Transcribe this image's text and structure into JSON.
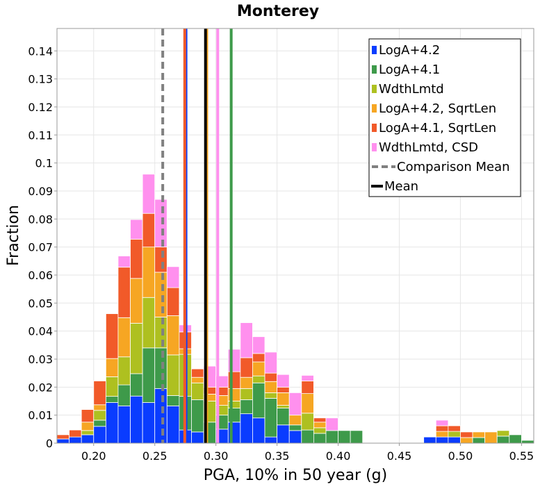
{
  "chart_data": {
    "type": "bar",
    "stacked": true,
    "title": "Monterey",
    "xlabel": "PGA, 10% in 50 year (g)",
    "ylabel": "Fraction",
    "xlim": [
      0.17,
      0.56
    ],
    "ylim": [
      0,
      0.148
    ],
    "grid": true,
    "legend_position": "top-right",
    "bin_width": 0.01,
    "x_ticks": [
      {
        "value": 0.2,
        "label": "0.20"
      },
      {
        "value": 0.25,
        "label": "0.25"
      },
      {
        "value": 0.3,
        "label": "0.30"
      },
      {
        "value": 0.35,
        "label": "0.35"
      },
      {
        "value": 0.4,
        "label": "0.40"
      },
      {
        "value": 0.45,
        "label": "0.45"
      },
      {
        "value": 0.5,
        "label": "0.50"
      },
      {
        "value": 0.55,
        "label": "0.55"
      }
    ],
    "y_ticks": [
      {
        "value": 0,
        "label": "0"
      },
      {
        "value": 0.01,
        "label": "0.01"
      },
      {
        "value": 0.02,
        "label": "0.02"
      },
      {
        "value": 0.03,
        "label": "0.03"
      },
      {
        "value": 0.04,
        "label": "0.04"
      },
      {
        "value": 0.05,
        "label": "0.05"
      },
      {
        "value": 0.06,
        "label": "0.06"
      },
      {
        "value": 0.07,
        "label": "0.07"
      },
      {
        "value": 0.08,
        "label": "0.08"
      },
      {
        "value": 0.09,
        "label": "0.09"
      },
      {
        "value": 0.1,
        "label": "0.1"
      },
      {
        "value": 0.11,
        "label": "0.11"
      },
      {
        "value": 0.12,
        "label": "0.12"
      },
      {
        "value": 0.13,
        "label": "0.13"
      },
      {
        "value": 0.14,
        "label": "0.14"
      }
    ],
    "x": [
      0.175,
      0.185,
      0.195,
      0.205,
      0.215,
      0.225,
      0.235,
      0.245,
      0.255,
      0.265,
      0.275,
      0.285,
      0.295,
      0.305,
      0.315,
      0.325,
      0.335,
      0.345,
      0.355,
      0.365,
      0.375,
      0.385,
      0.395,
      0.405,
      0.415,
      0.425,
      0.475,
      0.485,
      0.495,
      0.505,
      0.515,
      0.525,
      0.535,
      0.545,
      0.555
    ],
    "series": [
      {
        "name": "LogA+4.2",
        "color": "#0a3cff",
        "values": [
          0.0015,
          0.0022,
          0.003,
          0.006,
          0.0145,
          0.0133,
          0.0168,
          0.0145,
          0.0195,
          0.0133,
          0.0047,
          0.004,
          0.0,
          0.005,
          0.0075,
          0.0105,
          0.009,
          0.0022,
          0.0065,
          0.0045,
          0.0,
          0.0,
          0.0,
          0.0,
          0.0,
          0.0,
          0.0022,
          0.0022,
          0.0022,
          0.0,
          0.0,
          0.0,
          0.0,
          0.0,
          0.0
        ]
      },
      {
        "name": "LogA+4.1",
        "color": "#3e9a4a",
        "values": [
          0.0,
          0.0,
          0.0,
          0.0022,
          0.0022,
          0.0075,
          0.008,
          0.0195,
          0.0145,
          0.0037,
          0.012,
          0.0115,
          0.0075,
          0.005,
          0.005,
          0.005,
          0.0125,
          0.0138,
          0.006,
          0.002,
          0.0047,
          0.0035,
          0.0045,
          0.0045,
          0.0045,
          0.0,
          0.0,
          0.0,
          0.0,
          0.0,
          0.002,
          0.0,
          0.0025,
          0.003,
          0.001
        ]
      },
      {
        "name": "WdthLmtd",
        "color": "#aec020",
        "values": [
          0.0,
          0.0,
          0.0015,
          0.0035,
          0.007,
          0.01,
          0.018,
          0.018,
          0.011,
          0.0145,
          0.015,
          0.006,
          0.0075,
          0.0035,
          0.0025,
          0.004,
          0.0025,
          0.002,
          0.001,
          0.0,
          0.006,
          0.002,
          0.0,
          0.0,
          0.0,
          0.0,
          0.0,
          0.0,
          0.002,
          0.0,
          0.0,
          0.0,
          0.002,
          0.0,
          0.0
        ]
      },
      {
        "name": "LogA+4.2, SqrtLen",
        "color": "#f6a623",
        "values": [
          0.0,
          0.0,
          0.003,
          0.002,
          0.0065,
          0.014,
          0.016,
          0.018,
          0.016,
          0.014,
          0.002,
          0.002,
          0.0025,
          0.0035,
          0.0045,
          0.004,
          0.005,
          0.004,
          0.0045,
          0.0035,
          0.007,
          0.002,
          0.0,
          0.0,
          0.0,
          0.0,
          0.0,
          0.002,
          0.0,
          0.002,
          0.002,
          0.004,
          0.0,
          0.0,
          0.0
        ]
      },
      {
        "name": "LogA+4.1, SqrtLen",
        "color": "#f15a29",
        "values": [
          0.0015,
          0.0025,
          0.0045,
          0.0085,
          0.016,
          0.018,
          0.014,
          0.012,
          0.009,
          0.01,
          0.006,
          0.003,
          0.0025,
          0.003,
          0.006,
          0.007,
          0.003,
          0.003,
          0.002,
          0.0,
          0.0045,
          0.0015,
          0.0,
          0.0,
          0.0,
          0.0,
          0.0,
          0.002,
          0.002,
          0.002,
          0.0,
          0.0,
          0.0,
          0.0,
          0.0
        ]
      },
      {
        "name": "WdthLmtd, CSD",
        "color": "#ff90ee",
        "values": [
          0.0,
          0.0,
          0.0,
          0.0,
          0.0,
          0.004,
          0.007,
          0.014,
          0.017,
          0.0075,
          0.0025,
          0.0,
          0.0075,
          0.004,
          0.008,
          0.0125,
          0.006,
          0.0075,
          0.0045,
          0.008,
          0.002,
          0.0,
          0.0045,
          0.0,
          0.0,
          0.0,
          0.0,
          0.002,
          0.0,
          0.0,
          0.0,
          0.0,
          0.0,
          0.0,
          0.0
        ]
      }
    ],
    "vertical_lines": [
      {
        "series": "LogA+4.2",
        "x": 0.2755,
        "color": "#0a3cff",
        "style": "solid"
      },
      {
        "series": "LogA+4.1",
        "x": 0.3125,
        "color": "#3e9a4a",
        "style": "solid"
      },
      {
        "series": "LogA+4.2, SqrtLen",
        "x": 0.2925,
        "color": "#f6a623",
        "style": "solid"
      },
      {
        "series": "LogA+4.1, SqrtLen",
        "x": 0.2745,
        "color": "#f15a29",
        "style": "solid"
      },
      {
        "series": "WdthLmtd, CSD",
        "x": 0.3015,
        "color": "#ff90ee",
        "style": "solid"
      },
      {
        "series": "Comparison Mean",
        "x": 0.2565,
        "color": "#808080",
        "style": "dashed"
      },
      {
        "series": "Mean",
        "x": 0.2915,
        "color": "#000000",
        "style": "solid"
      }
    ],
    "legend": [
      {
        "label": "LogA+4.2",
        "color": "#0a3cff",
        "kind": "box"
      },
      {
        "label": "LogA+4.1",
        "color": "#3e9a4a",
        "kind": "box"
      },
      {
        "label": "WdthLmtd",
        "color": "#aec020",
        "kind": "box"
      },
      {
        "label": "LogA+4.2, SqrtLen",
        "color": "#f6a623",
        "kind": "box"
      },
      {
        "label": "LogA+4.1, SqrtLen",
        "color": "#f15a29",
        "kind": "box"
      },
      {
        "label": "WdthLmtd, CSD",
        "color": "#ff90ee",
        "kind": "box"
      },
      {
        "label": "Comparison Mean",
        "color": "#808080",
        "kind": "dashed"
      },
      {
        "label": "Mean",
        "color": "#000000",
        "kind": "line"
      }
    ]
  }
}
